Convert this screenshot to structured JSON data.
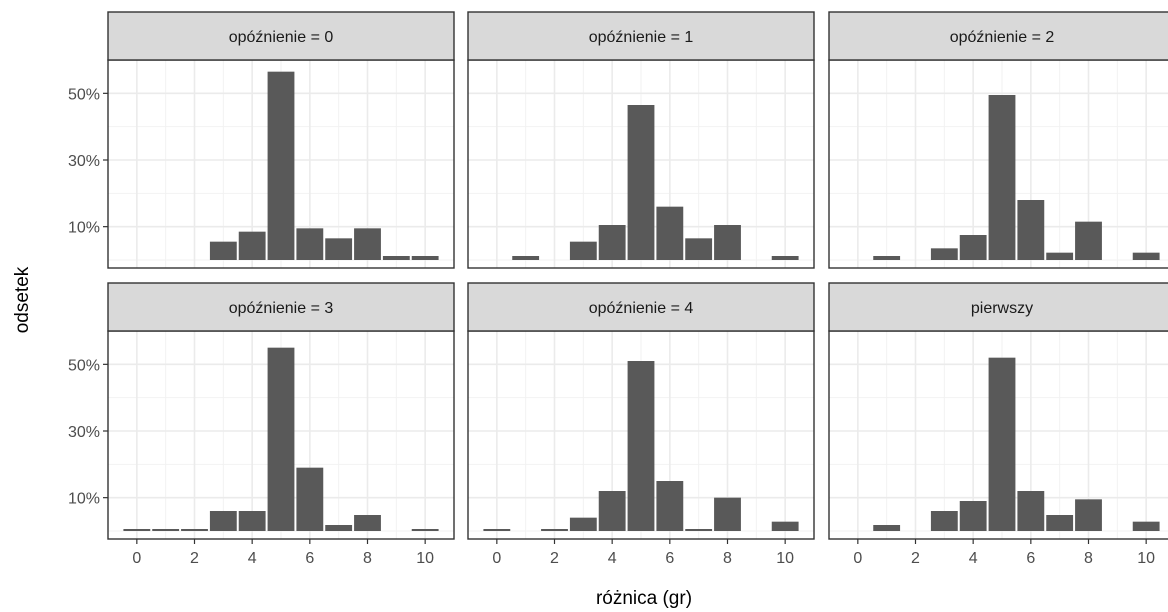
{
  "chart_data": {
    "type": "bar",
    "subtype": "faceted-histogram",
    "xlabel": "różnica (gr)",
    "ylabel": "odsetek",
    "x_ticks": [
      0,
      2,
      4,
      6,
      8,
      10
    ],
    "y_ticks": [
      "10%",
      "30%",
      "50%"
    ],
    "y_tick_values": [
      0.1,
      0.3,
      0.5
    ],
    "xlim": [
      -1,
      11
    ],
    "ylim": [
      0,
      0.6
    ],
    "grid": true,
    "bar_color": "#595959",
    "strip_color": "#d9d9d9",
    "x": [
      0,
      1,
      2,
      3,
      4,
      5,
      6,
      7,
      8,
      9,
      10
    ],
    "panels": [
      {
        "title": "opóźnienie = 0",
        "values": [
          0,
          0,
          0,
          0.055,
          0.085,
          0.565,
          0.095,
          0.065,
          0.095,
          0.012,
          0.012
        ]
      },
      {
        "title": "opóźnienie = 1",
        "values": [
          0,
          0.012,
          0,
          0.055,
          0.105,
          0.465,
          0.16,
          0.065,
          0.105,
          0,
          0.012
        ]
      },
      {
        "title": "opóźnienie = 2",
        "values": [
          0,
          0.012,
          0,
          0.035,
          0.075,
          0.495,
          0.18,
          0.022,
          0.115,
          0,
          0.022
        ]
      },
      {
        "title": "opóźnienie = 3",
        "values": [
          0.006,
          0.006,
          0.006,
          0.06,
          0.06,
          0.55,
          0.19,
          0.018,
          0.048,
          0,
          0.006
        ]
      },
      {
        "title": "opóźnienie = 4",
        "values": [
          0.006,
          0,
          0.006,
          0.04,
          0.12,
          0.51,
          0.15,
          0.006,
          0.1,
          0,
          0.028
        ]
      },
      {
        "title": "pierwszy",
        "values": [
          0,
          0.018,
          0,
          0.06,
          0.09,
          0.52,
          0.12,
          0.048,
          0.095,
          0,
          0.028
        ]
      }
    ]
  }
}
